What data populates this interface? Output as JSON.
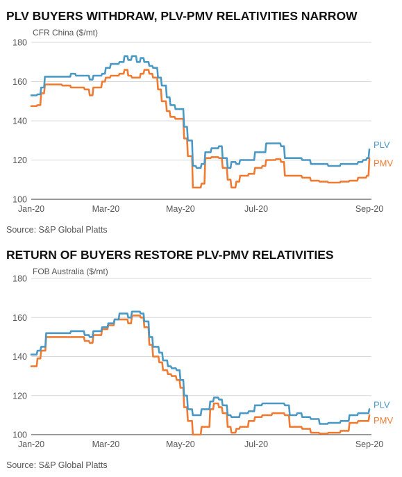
{
  "chart_data": [
    {
      "type": "line",
      "title": "PLV BUYERS WITHDRAW, PLV-PMV RELATIVITIES NARROW",
      "ylabel": "CFR China ($/mt)",
      "source": "Source: S&P Global Platts",
      "ylim": [
        100,
        180
      ],
      "yticks": [
        100,
        120,
        140,
        160,
        180
      ],
      "xlabels": [
        "Jan-20",
        "Mar-20",
        "May-20",
        "Jul-20",
        "Sep-20"
      ],
      "grid": true,
      "legend": "end-of-line labels, right",
      "x_start": "2020-01-02",
      "x_end": "2020-09-30",
      "series": [
        {
          "name": "PLV",
          "color": "#4a98c4",
          "points": [
            [
              "2020-01-02",
              153
            ],
            [
              "2020-01-07",
              153.5
            ],
            [
              "2020-01-10",
              157
            ],
            [
              "2020-01-13",
              162.5
            ],
            [
              "2020-01-20",
              162.5
            ],
            [
              "2020-01-27",
              162.5
            ],
            [
              "2020-02-03",
              164
            ],
            [
              "2020-02-07",
              163
            ],
            [
              "2020-02-14",
              163
            ],
            [
              "2020-02-18",
              161
            ],
            [
              "2020-02-21",
              163
            ],
            [
              "2020-02-28",
              164
            ],
            [
              "2020-03-02",
              167
            ],
            [
              "2020-03-06",
              169
            ],
            [
              "2020-03-13",
              170
            ],
            [
              "2020-03-17",
              173
            ],
            [
              "2020-03-20",
              171
            ],
            [
              "2020-03-23",
              173
            ],
            [
              "2020-03-27",
              170
            ],
            [
              "2020-03-30",
              172
            ],
            [
              "2020-04-02",
              170
            ],
            [
              "2020-04-06",
              168
            ],
            [
              "2020-04-09",
              167
            ],
            [
              "2020-04-13",
              162
            ],
            [
              "2020-04-16",
              158
            ],
            [
              "2020-04-20",
              152
            ],
            [
              "2020-04-23",
              148
            ],
            [
              "2020-04-27",
              146
            ],
            [
              "2020-05-01",
              146
            ],
            [
              "2020-05-04",
              137
            ],
            [
              "2020-05-07",
              130
            ],
            [
              "2020-05-11",
              117
            ],
            [
              "2020-05-14",
              116
            ],
            [
              "2020-05-18",
              118
            ],
            [
              "2020-05-21",
              124
            ],
            [
              "2020-05-26",
              126
            ],
            [
              "2020-06-01",
              127
            ],
            [
              "2020-06-04",
              121
            ],
            [
              "2020-06-08",
              116
            ],
            [
              "2020-06-11",
              119
            ],
            [
              "2020-06-15",
              118
            ],
            [
              "2020-06-18",
              120
            ],
            [
              "2020-06-25",
              120
            ],
            [
              "2020-06-30",
              124
            ],
            [
              "2020-07-06",
              124
            ],
            [
              "2020-07-09",
              128.5
            ],
            [
              "2020-07-17",
              128.5
            ],
            [
              "2020-07-21",
              127
            ],
            [
              "2020-07-24",
              121
            ],
            [
              "2020-08-03",
              121
            ],
            [
              "2020-08-07",
              120
            ],
            [
              "2020-08-14",
              118
            ],
            [
              "2020-08-21",
              118
            ],
            [
              "2020-08-28",
              117
            ],
            [
              "2020-09-07",
              118
            ],
            [
              "2020-09-14",
              118
            ],
            [
              "2020-09-21",
              119
            ],
            [
              "2020-09-25",
              120
            ],
            [
              "2020-09-28",
              121
            ],
            [
              "2020-09-30",
              125.5
            ]
          ]
        },
        {
          "name": "PMV",
          "color": "#ef7b33",
          "points": [
            [
              "2020-01-02",
              147.5
            ],
            [
              "2020-01-07",
              148
            ],
            [
              "2020-01-10",
              154
            ],
            [
              "2020-01-13",
              158.5
            ],
            [
              "2020-01-20",
              158.5
            ],
            [
              "2020-01-27",
              158
            ],
            [
              "2020-02-03",
              157
            ],
            [
              "2020-02-07",
              157
            ],
            [
              "2020-02-14",
              156
            ],
            [
              "2020-02-18",
              153
            ],
            [
              "2020-02-21",
              157
            ],
            [
              "2020-02-28",
              160
            ],
            [
              "2020-03-02",
              162
            ],
            [
              "2020-03-06",
              163
            ],
            [
              "2020-03-13",
              164
            ],
            [
              "2020-03-17",
              166
            ],
            [
              "2020-03-20",
              163
            ],
            [
              "2020-03-23",
              162
            ],
            [
              "2020-03-27",
              162
            ],
            [
              "2020-03-30",
              164
            ],
            [
              "2020-04-02",
              166
            ],
            [
              "2020-04-06",
              164
            ],
            [
              "2020-04-09",
              162
            ],
            [
              "2020-04-13",
              156
            ],
            [
              "2020-04-16",
              150
            ],
            [
              "2020-04-20",
              145
            ],
            [
              "2020-04-23",
              142
            ],
            [
              "2020-04-27",
              141
            ],
            [
              "2020-05-01",
              141
            ],
            [
              "2020-05-04",
              131
            ],
            [
              "2020-05-07",
              122
            ],
            [
              "2020-05-11",
              106
            ],
            [
              "2020-05-14",
              106
            ],
            [
              "2020-05-18",
              108
            ],
            [
              "2020-05-21",
              121
            ],
            [
              "2020-05-26",
              121.5
            ],
            [
              "2020-06-01",
              121
            ],
            [
              "2020-06-04",
              116
            ],
            [
              "2020-06-08",
              110
            ],
            [
              "2020-06-11",
              106
            ],
            [
              "2020-06-15",
              109
            ],
            [
              "2020-06-18",
              112
            ],
            [
              "2020-06-25",
              113
            ],
            [
              "2020-06-30",
              116
            ],
            [
              "2020-07-06",
              117
            ],
            [
              "2020-07-09",
              120
            ],
            [
              "2020-07-17",
              120.5
            ],
            [
              "2020-07-21",
              119
            ],
            [
              "2020-07-24",
              112
            ],
            [
              "2020-08-03",
              112
            ],
            [
              "2020-08-07",
              111
            ],
            [
              "2020-08-14",
              109.5
            ],
            [
              "2020-08-21",
              109
            ],
            [
              "2020-08-28",
              108.5
            ],
            [
              "2020-09-07",
              109
            ],
            [
              "2020-09-14",
              109.5
            ],
            [
              "2020-09-21",
              111
            ],
            [
              "2020-09-25",
              111
            ],
            [
              "2020-09-28",
              112
            ],
            [
              "2020-09-30",
              121
            ]
          ]
        }
      ]
    },
    {
      "type": "line",
      "title": "RETURN OF BUYERS RESTORE PLV-PMV RELATIVITIES",
      "ylabel": "FOB Australia ($/mt)",
      "source": "Source: S&P Global Platts",
      "ylim": [
        100,
        180
      ],
      "yticks": [
        100,
        120,
        140,
        160,
        180
      ],
      "xlabels": [
        "Jan-20",
        "Mar-20",
        "May-20",
        "Jul-20",
        "Sep-20"
      ],
      "grid": true,
      "legend": "end-of-line labels, right",
      "x_start": "2020-01-02",
      "x_end": "2020-09-30",
      "series": [
        {
          "name": "PLV",
          "color": "#4a98c4",
          "points": [
            [
              "2020-01-02",
              141
            ],
            [
              "2020-01-07",
              143
            ],
            [
              "2020-01-10",
              145
            ],
            [
              "2020-01-14",
              152
            ],
            [
              "2020-01-21",
              152
            ],
            [
              "2020-01-28",
              152
            ],
            [
              "2020-02-03",
              153
            ],
            [
              "2020-02-10",
              153
            ],
            [
              "2020-02-14",
              151
            ],
            [
              "2020-02-18",
              150
            ],
            [
              "2020-02-21",
              153
            ],
            [
              "2020-02-28",
              155
            ],
            [
              "2020-03-04",
              157
            ],
            [
              "2020-03-09",
              159
            ],
            [
              "2020-03-13",
              162
            ],
            [
              "2020-03-17",
              162
            ],
            [
              "2020-03-20",
              160
            ],
            [
              "2020-03-23",
              163
            ],
            [
              "2020-03-27",
              163
            ],
            [
              "2020-03-30",
              162
            ],
            [
              "2020-04-02",
              158
            ],
            [
              "2020-04-06",
              150
            ],
            [
              "2020-04-09",
              145
            ],
            [
              "2020-04-14",
              142
            ],
            [
              "2020-04-17",
              138
            ],
            [
              "2020-04-21",
              135
            ],
            [
              "2020-04-24",
              134
            ],
            [
              "2020-04-28",
              133
            ],
            [
              "2020-05-01",
              128
            ],
            [
              "2020-05-04",
              120
            ],
            [
              "2020-05-07",
              113
            ],
            [
              "2020-05-11",
              110
            ],
            [
              "2020-05-14",
              110
            ],
            [
              "2020-05-18",
              113
            ],
            [
              "2020-05-25",
              117
            ],
            [
              "2020-05-28",
              119
            ],
            [
              "2020-06-01",
              118
            ],
            [
              "2020-06-04",
              115
            ],
            [
              "2020-06-08",
              110
            ],
            [
              "2020-06-11",
              109
            ],
            [
              "2020-06-15",
              109
            ],
            [
              "2020-06-18",
              111
            ],
            [
              "2020-06-25",
              112
            ],
            [
              "2020-06-30",
              115
            ],
            [
              "2020-07-06",
              116
            ],
            [
              "2020-07-14",
              116
            ],
            [
              "2020-07-21",
              116
            ],
            [
              "2020-07-24",
              115
            ],
            [
              "2020-07-28",
              110
            ],
            [
              "2020-08-03",
              111
            ],
            [
              "2020-08-07",
              109
            ],
            [
              "2020-08-14",
              108
            ],
            [
              "2020-08-21",
              105.5
            ],
            [
              "2020-08-28",
              106
            ],
            [
              "2020-09-07",
              107
            ],
            [
              "2020-09-14",
              110
            ],
            [
              "2020-09-21",
              111
            ],
            [
              "2020-09-25",
              111
            ],
            [
              "2020-09-30",
              113
            ]
          ]
        },
        {
          "name": "PMV",
          "color": "#ef7b33",
          "points": [
            [
              "2020-01-02",
              135
            ],
            [
              "2020-01-07",
              139
            ],
            [
              "2020-01-10",
              143
            ],
            [
              "2020-01-14",
              150
            ],
            [
              "2020-01-21",
              150
            ],
            [
              "2020-01-28",
              150
            ],
            [
              "2020-02-03",
              150
            ],
            [
              "2020-02-10",
              150
            ],
            [
              "2020-02-14",
              148
            ],
            [
              "2020-02-18",
              147
            ],
            [
              "2020-02-21",
              151
            ],
            [
              "2020-02-28",
              154
            ],
            [
              "2020-03-04",
              156
            ],
            [
              "2020-03-09",
              159
            ],
            [
              "2020-03-13",
              159
            ],
            [
              "2020-03-17",
              159
            ],
            [
              "2020-03-20",
              157
            ],
            [
              "2020-03-23",
              161
            ],
            [
              "2020-03-27",
              161
            ],
            [
              "2020-03-30",
              160
            ],
            [
              "2020-04-02",
              155
            ],
            [
              "2020-04-06",
              146
            ],
            [
              "2020-04-09",
              140
            ],
            [
              "2020-04-14",
              137
            ],
            [
              "2020-04-17",
              133
            ],
            [
              "2020-04-21",
              131
            ],
            [
              "2020-04-24",
              130
            ],
            [
              "2020-04-28",
              128
            ],
            [
              "2020-05-01",
              124
            ],
            [
              "2020-05-04",
              114
            ],
            [
              "2020-05-07",
              107
            ],
            [
              "2020-05-11",
              100
            ],
            [
              "2020-05-14",
              100
            ],
            [
              "2020-05-18",
              104
            ],
            [
              "2020-05-25",
              113
            ],
            [
              "2020-05-28",
              116
            ],
            [
              "2020-06-01",
              114
            ],
            [
              "2020-06-04",
              111
            ],
            [
              "2020-06-08",
              104
            ],
            [
              "2020-06-11",
              101
            ],
            [
              "2020-06-15",
              103
            ],
            [
              "2020-06-18",
              104
            ],
            [
              "2020-06-25",
              107
            ],
            [
              "2020-06-30",
              109
            ],
            [
              "2020-07-06",
              110
            ],
            [
              "2020-07-14",
              111
            ],
            [
              "2020-07-21",
              111
            ],
            [
              "2020-07-24",
              110
            ],
            [
              "2020-07-28",
              104
            ],
            [
              "2020-08-03",
              104
            ],
            [
              "2020-08-07",
              103
            ],
            [
              "2020-08-14",
              101
            ],
            [
              "2020-08-21",
              100.5
            ],
            [
              "2020-08-28",
              101
            ],
            [
              "2020-09-07",
              102
            ],
            [
              "2020-09-14",
              106
            ],
            [
              "2020-09-21",
              107
            ],
            [
              "2020-09-25",
              107
            ],
            [
              "2020-09-30",
              110
            ]
          ]
        }
      ]
    }
  ]
}
